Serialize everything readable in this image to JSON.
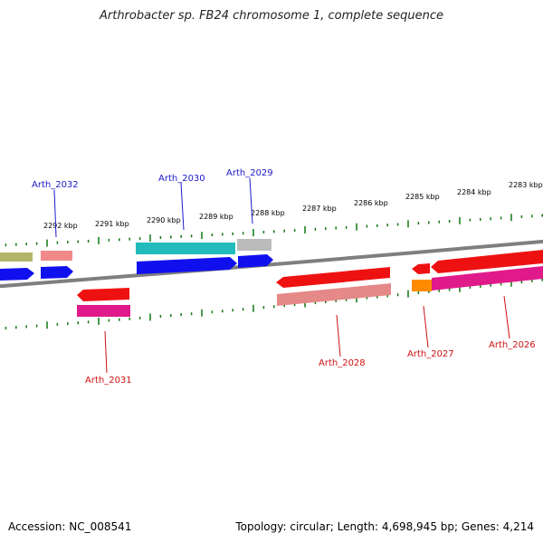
{
  "title": "Arthrobacter sp. FB24 chromosome 1, complete sequence",
  "footer": {
    "accession": "Accession: NC_008541",
    "topology": "Topology: circular; Length: 4,698,945 bp; Genes: 4,214"
  },
  "colors": {
    "backbone": "#8a8a8a",
    "tick": "#117711",
    "label_forward": "#1a1acc",
    "label_reverse": "#cc1111"
  },
  "scale_labels": [
    "2292 kbp",
    "2291 kbp",
    "2290 kbp",
    "2289 kbp",
    "2288 kbp",
    "2287 kbp",
    "2286 kbp",
    "2285 kbp",
    "2284 kbp",
    "2283 kbp"
  ],
  "gene_labels": [
    {
      "name": "Arth_2032",
      "strand": "forward"
    },
    {
      "name": "Arth_2030",
      "strand": "forward"
    },
    {
      "name": "Arth_2029",
      "strand": "forward"
    },
    {
      "name": "Arth_2031",
      "strand": "reverse"
    },
    {
      "name": "Arth_2028",
      "strand": "reverse"
    },
    {
      "name": "Arth_2027",
      "strand": "reverse"
    },
    {
      "name": "Arth_2026",
      "strand": "reverse"
    }
  ]
}
